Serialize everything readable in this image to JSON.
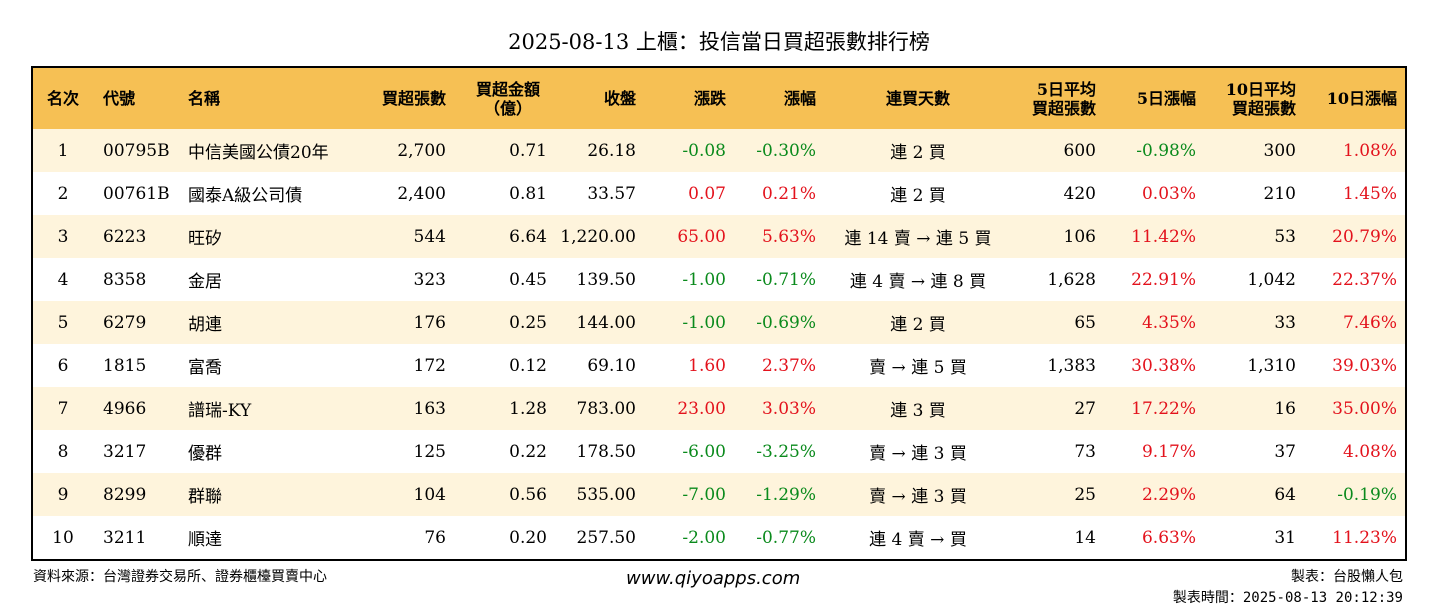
{
  "title": "2025-08-13 上櫃：投信當日買超張數排行榜",
  "headers": {
    "rank": "名次",
    "code": "代號",
    "name": "名稱",
    "net_buy_lots": "買超張數",
    "net_buy_amount_1": "買超金額",
    "net_buy_amount_2": "（億）",
    "close": "收盤",
    "change": "漲跌",
    "change_pct": "漲幅",
    "streak": "連買天數",
    "avg5_1": "5日平均",
    "avg5_2": "買超張數",
    "pct5": "5日漲幅",
    "avg10_1": "10日平均",
    "avg10_2": "買超張數",
    "pct10": "10日漲幅"
  },
  "rows": [
    {
      "rank": "1",
      "code": "00795B",
      "name": "中信美國公債20年",
      "lots": "2,700",
      "amount": "0.71",
      "close": "26.18",
      "change": "-0.08",
      "change_dir": "neg",
      "pct": "-0.30%",
      "pct_dir": "neg",
      "streak": "連 2 買",
      "avg5": "600",
      "pct5": "-0.98%",
      "pct5_dir": "neg",
      "avg10": "300",
      "pct10": "1.08%",
      "pct10_dir": "pos"
    },
    {
      "rank": "2",
      "code": "00761B",
      "name": "國泰A級公司債",
      "lots": "2,400",
      "amount": "0.81",
      "close": "33.57",
      "change": "0.07",
      "change_dir": "pos",
      "pct": "0.21%",
      "pct_dir": "pos",
      "streak": "連 2 買",
      "avg5": "420",
      "pct5": "0.03%",
      "pct5_dir": "pos",
      "avg10": "210",
      "pct10": "1.45%",
      "pct10_dir": "pos"
    },
    {
      "rank": "3",
      "code": "6223",
      "name": "旺矽",
      "lots": "544",
      "amount": "6.64",
      "close": "1,220.00",
      "change": "65.00",
      "change_dir": "pos",
      "pct": "5.63%",
      "pct_dir": "pos",
      "streak": "連 14 賣 → 連 5 買",
      "avg5": "106",
      "pct5": "11.42%",
      "pct5_dir": "pos",
      "avg10": "53",
      "pct10": "20.79%",
      "pct10_dir": "pos"
    },
    {
      "rank": "4",
      "code": "8358",
      "name": "金居",
      "lots": "323",
      "amount": "0.45",
      "close": "139.50",
      "change": "-1.00",
      "change_dir": "neg",
      "pct": "-0.71%",
      "pct_dir": "neg",
      "streak": "連 4 賣 → 連 8 買",
      "avg5": "1,628",
      "pct5": "22.91%",
      "pct5_dir": "pos",
      "avg10": "1,042",
      "pct10": "22.37%",
      "pct10_dir": "pos"
    },
    {
      "rank": "5",
      "code": "6279",
      "name": "胡連",
      "lots": "176",
      "amount": "0.25",
      "close": "144.00",
      "change": "-1.00",
      "change_dir": "neg",
      "pct": "-0.69%",
      "pct_dir": "neg",
      "streak": "連 2 買",
      "avg5": "65",
      "pct5": "4.35%",
      "pct5_dir": "pos",
      "avg10": "33",
      "pct10": "7.46%",
      "pct10_dir": "pos"
    },
    {
      "rank": "6",
      "code": "1815",
      "name": "富喬",
      "lots": "172",
      "amount": "0.12",
      "close": "69.10",
      "change": "1.60",
      "change_dir": "pos",
      "pct": "2.37%",
      "pct_dir": "pos",
      "streak": "賣 → 連 5 買",
      "avg5": "1,383",
      "pct5": "30.38%",
      "pct5_dir": "pos",
      "avg10": "1,310",
      "pct10": "39.03%",
      "pct10_dir": "pos"
    },
    {
      "rank": "7",
      "code": "4966",
      "name": "譜瑞-KY",
      "lots": "163",
      "amount": "1.28",
      "close": "783.00",
      "change": "23.00",
      "change_dir": "pos",
      "pct": "3.03%",
      "pct_dir": "pos",
      "streak": "連 3 買",
      "avg5": "27",
      "pct5": "17.22%",
      "pct5_dir": "pos",
      "avg10": "16",
      "pct10": "35.00%",
      "pct10_dir": "pos"
    },
    {
      "rank": "8",
      "code": "3217",
      "name": "優群",
      "lots": "125",
      "amount": "0.22",
      "close": "178.50",
      "change": "-6.00",
      "change_dir": "neg",
      "pct": "-3.25%",
      "pct_dir": "neg",
      "streak": "賣 → 連 3 買",
      "avg5": "73",
      "pct5": "9.17%",
      "pct5_dir": "pos",
      "avg10": "37",
      "pct10": "4.08%",
      "pct10_dir": "pos"
    },
    {
      "rank": "9",
      "code": "8299",
      "name": "群聯",
      "lots": "104",
      "amount": "0.56",
      "close": "535.00",
      "change": "-7.00",
      "change_dir": "neg",
      "pct": "-1.29%",
      "pct_dir": "neg",
      "streak": "賣 → 連 3 買",
      "avg5": "25",
      "pct5": "2.29%",
      "pct5_dir": "pos",
      "avg10": "64",
      "pct10": "-0.19%",
      "pct10_dir": "neg"
    },
    {
      "rank": "10",
      "code": "3211",
      "name": "順達",
      "lots": "76",
      "amount": "0.20",
      "close": "257.50",
      "change": "-2.00",
      "change_dir": "neg",
      "pct": "-0.77%",
      "pct_dir": "neg",
      "streak": "連 4 賣 → 買",
      "avg5": "14",
      "pct5": "6.63%",
      "pct5_dir": "pos",
      "avg10": "31",
      "pct10": "11.23%",
      "pct10_dir": "pos"
    }
  ],
  "footer": {
    "source": "資料來源：台灣證券交易所、證券櫃檯買賣中心",
    "website": "www.qiyoapps.com",
    "maker": "製表：台股懶人包",
    "made_time": "製表時間：2025-08-13 20:12:39"
  },
  "colors": {
    "header_bg": "#f6c054",
    "odd_row_bg": "#fef4dc",
    "up": "#e3121c",
    "down": "#0a8a1c"
  }
}
